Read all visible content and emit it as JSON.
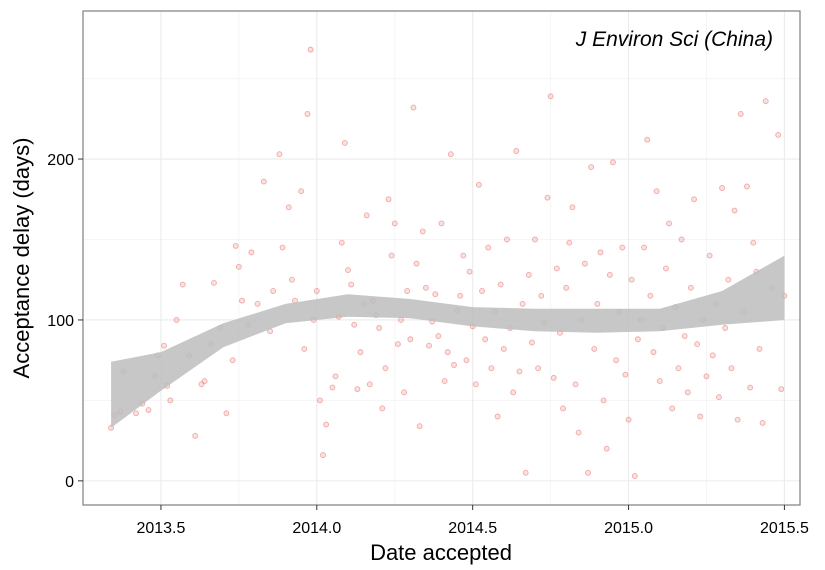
{
  "chart_data": {
    "type": "scatter",
    "annotation": "J Environ Sci (China)",
    "xlabel": "Date accepted",
    "ylabel": "Acceptance delay (days)",
    "xlim": [
      2013.25,
      2015.55
    ],
    "ylim": [
      -15,
      292
    ],
    "x_ticks": [
      {
        "value": 2013.5,
        "label": "2013.5"
      },
      {
        "value": 2014.0,
        "label": "2014.0"
      },
      {
        "value": 2014.5,
        "label": "2014.5"
      },
      {
        "value": 2015.0,
        "label": "2015.0"
      },
      {
        "value": 2015.5,
        "label": "2015.5"
      }
    ],
    "y_ticks": [
      {
        "value": 0,
        "label": "0"
      },
      {
        "value": 100,
        "label": "100"
      },
      {
        "value": 200,
        "label": "200"
      }
    ],
    "grid": true,
    "colors": {
      "points": "#e8706b",
      "band": "#bdbdbd",
      "grid": "#ebebeb",
      "border": "#7f7f7f"
    },
    "smooth": {
      "x": [
        2013.34,
        2013.5,
        2013.7,
        2013.9,
        2014.1,
        2014.3,
        2014.5,
        2014.7,
        2014.9,
        2015.1,
        2015.3,
        2015.5
      ],
      "lower": [
        33,
        56,
        83,
        98,
        102,
        101,
        96,
        93,
        92,
        93,
        97,
        100
      ],
      "upper": [
        74,
        80,
        98,
        110,
        116,
        113,
        108,
        107,
        107,
        107,
        118,
        140
      ]
    },
    "points": [
      [
        2013.34,
        33
      ],
      [
        2013.35,
        41
      ],
      [
        2013.37,
        43
      ],
      [
        2013.38,
        68
      ],
      [
        2013.42,
        42
      ],
      [
        2013.44,
        48
      ],
      [
        2013.46,
        44
      ],
      [
        2013.48,
        65
      ],
      [
        2013.49,
        78
      ],
      [
        2013.51,
        84
      ],
      [
        2013.52,
        59
      ],
      [
        2013.53,
        50
      ],
      [
        2013.55,
        100
      ],
      [
        2013.57,
        122
      ],
      [
        2013.59,
        78
      ],
      [
        2013.61,
        28
      ],
      [
        2013.63,
        60
      ],
      [
        2013.64,
        62
      ],
      [
        2013.66,
        85
      ],
      [
        2013.67,
        123
      ],
      [
        2013.69,
        95
      ],
      [
        2013.71,
        42
      ],
      [
        2013.73,
        75
      ],
      [
        2013.74,
        146
      ],
      [
        2013.75,
        133
      ],
      [
        2013.76,
        112
      ],
      [
        2013.78,
        97
      ],
      [
        2013.79,
        142
      ],
      [
        2013.81,
        110
      ],
      [
        2013.83,
        186
      ],
      [
        2013.85,
        93
      ],
      [
        2013.86,
        118
      ],
      [
        2013.88,
        203
      ],
      [
        2013.89,
        145
      ],
      [
        2013.91,
        170
      ],
      [
        2013.92,
        125
      ],
      [
        2013.93,
        112
      ],
      [
        2013.95,
        180
      ],
      [
        2013.96,
        82
      ],
      [
        2013.97,
        228
      ],
      [
        2013.98,
        268
      ],
      [
        2013.99,
        100
      ],
      [
        2014.0,
        118
      ],
      [
        2014.01,
        50
      ],
      [
        2014.02,
        16
      ],
      [
        2014.03,
        35
      ],
      [
        2014.05,
        58
      ],
      [
        2014.06,
        65
      ],
      [
        2014.07,
        102
      ],
      [
        2014.08,
        148
      ],
      [
        2014.09,
        210
      ],
      [
        2014.1,
        131
      ],
      [
        2014.11,
        122
      ],
      [
        2014.12,
        97
      ],
      [
        2014.13,
        57
      ],
      [
        2014.14,
        80
      ],
      [
        2014.15,
        110
      ],
      [
        2014.16,
        165
      ],
      [
        2014.17,
        60
      ],
      [
        2014.18,
        112
      ],
      [
        2014.19,
        103
      ],
      [
        2014.2,
        95
      ],
      [
        2014.21,
        45
      ],
      [
        2014.22,
        70
      ],
      [
        2014.23,
        175
      ],
      [
        2014.24,
        140
      ],
      [
        2014.25,
        160
      ],
      [
        2014.26,
        85
      ],
      [
        2014.27,
        100
      ],
      [
        2014.28,
        55
      ],
      [
        2014.29,
        118
      ],
      [
        2014.3,
        88
      ],
      [
        2014.31,
        232
      ],
      [
        2014.32,
        135
      ],
      [
        2014.33,
        34
      ],
      [
        2014.34,
        155
      ],
      [
        2014.35,
        120
      ],
      [
        2014.36,
        84
      ],
      [
        2014.37,
        99
      ],
      [
        2014.38,
        116
      ],
      [
        2014.39,
        90
      ],
      [
        2014.4,
        160
      ],
      [
        2014.41,
        62
      ],
      [
        2014.42,
        80
      ],
      [
        2014.43,
        203
      ],
      [
        2014.44,
        72
      ],
      [
        2014.45,
        106
      ],
      [
        2014.46,
        115
      ],
      [
        2014.47,
        140
      ],
      [
        2014.48,
        75
      ],
      [
        2014.49,
        130
      ],
      [
        2014.5,
        96
      ],
      [
        2014.51,
        60
      ],
      [
        2014.52,
        184
      ],
      [
        2014.53,
        118
      ],
      [
        2014.54,
        88
      ],
      [
        2014.55,
        145
      ],
      [
        2014.56,
        70
      ],
      [
        2014.57,
        105
      ],
      [
        2014.58,
        40
      ],
      [
        2014.59,
        122
      ],
      [
        2014.6,
        82
      ],
      [
        2014.61,
        150
      ],
      [
        2014.62,
        95
      ],
      [
        2014.63,
        55
      ],
      [
        2014.64,
        205
      ],
      [
        2014.65,
        68
      ],
      [
        2014.66,
        110
      ],
      [
        2014.67,
        5
      ],
      [
        2014.68,
        128
      ],
      [
        2014.69,
        86
      ],
      [
        2014.7,
        150
      ],
      [
        2014.71,
        70
      ],
      [
        2014.72,
        115
      ],
      [
        2014.73,
        98
      ],
      [
        2014.74,
        176
      ],
      [
        2014.75,
        239
      ],
      [
        2014.76,
        64
      ],
      [
        2014.77,
        132
      ],
      [
        2014.78,
        92
      ],
      [
        2014.79,
        45
      ],
      [
        2014.8,
        120
      ],
      [
        2014.81,
        148
      ],
      [
        2014.82,
        170
      ],
      [
        2014.83,
        60
      ],
      [
        2014.84,
        30
      ],
      [
        2014.85,
        100
      ],
      [
        2014.86,
        135
      ],
      [
        2014.87,
        5
      ],
      [
        2014.88,
        195
      ],
      [
        2014.89,
        82
      ],
      [
        2014.9,
        110
      ],
      [
        2014.91,
        142
      ],
      [
        2014.92,
        50
      ],
      [
        2014.93,
        20
      ],
      [
        2014.94,
        128
      ],
      [
        2014.95,
        198
      ],
      [
        2014.96,
        75
      ],
      [
        2014.97,
        105
      ],
      [
        2014.98,
        145
      ],
      [
        2014.99,
        66
      ],
      [
        2015.0,
        38
      ],
      [
        2015.01,
        125
      ],
      [
        2015.02,
        3
      ],
      [
        2015.03,
        88
      ],
      [
        2015.04,
        100
      ],
      [
        2015.05,
        145
      ],
      [
        2015.06,
        212
      ],
      [
        2015.07,
        115
      ],
      [
        2015.08,
        80
      ],
      [
        2015.09,
        180
      ],
      [
        2015.1,
        62
      ],
      [
        2015.11,
        95
      ],
      [
        2015.12,
        132
      ],
      [
        2015.13,
        160
      ],
      [
        2015.14,
        45
      ],
      [
        2015.15,
        108
      ],
      [
        2015.16,
        70
      ],
      [
        2015.17,
        150
      ],
      [
        2015.18,
        90
      ],
      [
        2015.19,
        55
      ],
      [
        2015.2,
        120
      ],
      [
        2015.21,
        175
      ],
      [
        2015.22,
        85
      ],
      [
        2015.23,
        40
      ],
      [
        2015.24,
        100
      ],
      [
        2015.25,
        65
      ],
      [
        2015.26,
        140
      ],
      [
        2015.27,
        78
      ],
      [
        2015.28,
        110
      ],
      [
        2015.29,
        52
      ],
      [
        2015.3,
        182
      ],
      [
        2015.31,
        95
      ],
      [
        2015.32,
        125
      ],
      [
        2015.33,
        70
      ],
      [
        2015.34,
        168
      ],
      [
        2015.35,
        38
      ],
      [
        2015.36,
        228
      ],
      [
        2015.37,
        105
      ],
      [
        2015.38,
        183
      ],
      [
        2015.39,
        58
      ],
      [
        2015.4,
        148
      ],
      [
        2015.41,
        130
      ],
      [
        2015.42,
        82
      ],
      [
        2015.43,
        36
      ],
      [
        2015.44,
        236
      ],
      [
        2015.46,
        120
      ],
      [
        2015.48,
        215
      ],
      [
        2015.49,
        57
      ],
      [
        2015.5,
        115
      ]
    ]
  }
}
